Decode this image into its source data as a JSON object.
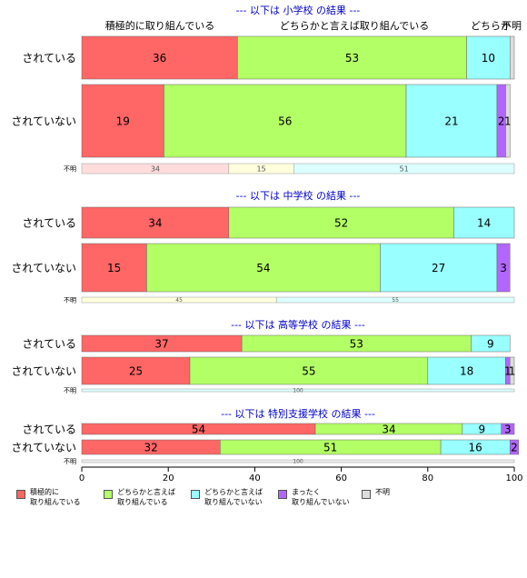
{
  "chart_data": {
    "type": "bar",
    "orientation": "horizontal",
    "stacked": "percent",
    "xlim": [
      0,
      100
    ],
    "x_ticks": [
      "0",
      "20",
      "40",
      "60",
      "80",
      "100"
    ],
    "legend_position": "bottom",
    "top_category_labels": [
      "積極的に取り組んでいる",
      "どちらかと言えば取り組んでいる",
      "どちらか",
      "不明"
    ],
    "series": [
      {
        "name": "積極的に\n取り組んでいる",
        "color": "#FF6666"
      },
      {
        "name": "どちらかと言えば\n取り組んでいる",
        "color": "#B3FF66"
      },
      {
        "name": "どちらかと言えば\n取り組んでいない",
        "color": "#99FFFF"
      },
      {
        "name": "まったく\n取り組んでいない",
        "color": "#B266FF"
      },
      {
        "name": "不明",
        "color": "#DDDDDD"
      }
    ],
    "panels": [
      {
        "title": "--- 以下は 小学校 の結果 ---",
        "rows": [
          {
            "label": "されている",
            "values": [
              36,
              53,
              10,
              0,
              1
            ],
            "labels": [
              "36",
              "53",
              "10",
              "",
              ""
            ]
          },
          {
            "label": "されていない",
            "values": [
              19,
              56,
              21,
              2,
              1
            ],
            "labels": [
              "19",
              "56",
              "21",
              "2",
              "1"
            ]
          }
        ],
        "unknown": {
          "label": "不明",
          "values": [
            34,
            15,
            51,
            0,
            0
          ],
          "colors": [
            "#FFDDDD",
            "#FFFFDD",
            "#DDFFFF",
            "#EEEEFF",
            "#EEEEEE"
          ],
          "labels": [
            "34",
            "15",
            "51",
            "",
            ""
          ]
        }
      },
      {
        "title": "--- 以下は 中学校 の結果 ---",
        "rows": [
          {
            "label": "されている",
            "values": [
              34,
              52,
              14,
              0,
              0
            ],
            "labels": [
              "34",
              "52",
              "14",
              "",
              ""
            ]
          },
          {
            "label": "されていない",
            "values": [
              15,
              54,
              27,
              3,
              0
            ],
            "labels": [
              "15",
              "54",
              "27",
              "3",
              ""
            ]
          }
        ],
        "unknown": {
          "label": "不明",
          "values": [
            0,
            45,
            55,
            0,
            0
          ],
          "colors": [
            "#FFDDDD",
            "#FFFFDD",
            "#DDFFFF",
            "#EEEEFF",
            "#EEEEEE"
          ],
          "labels": [
            "",
            "45",
            "55",
            "",
            ""
          ]
        }
      },
      {
        "title": "--- 以下は 高等学校 の結果 ---",
        "rows": [
          {
            "label": "されている",
            "values": [
              37,
              53,
              9,
              0,
              0
            ],
            "labels": [
              "37",
              "53",
              "9",
              "",
              ""
            ]
          },
          {
            "label": "されていない",
            "values": [
              25,
              55,
              18,
              1,
              1
            ],
            "labels": [
              "25",
              "55",
              "18",
              "1",
              "1"
            ]
          }
        ],
        "unknown": {
          "label": "不明",
          "values": [
            0,
            0,
            100,
            0,
            0
          ],
          "colors": [
            "#FFDDDD",
            "#FFFFDD",
            "#DDFFFF",
            "#EEEEFF",
            "#EEEEEE"
          ],
          "labels": [
            "",
            "",
            "100",
            "",
            ""
          ]
        }
      },
      {
        "title": "--- 以下は 特別支援学校 の結果 ---",
        "rows": [
          {
            "label": "されている",
            "values": [
              54,
              34,
              9,
              3,
              0
            ],
            "labels": [
              "54",
              "34",
              "9",
              "3",
              ""
            ]
          },
          {
            "label": "されていない",
            "values": [
              32,
              51,
              16,
              2,
              0
            ],
            "labels": [
              "32",
              "51",
              "16",
              "2",
              ""
            ]
          }
        ],
        "unknown": {
          "label": "不明",
          "values": [
            0,
            0,
            0,
            0,
            100
          ],
          "colors": [
            "#FFDDDD",
            "#FFFFDD",
            "#DDFFFF",
            "#EEEEFF",
            "#EEEEEE"
          ],
          "labels": [
            "",
            "",
            "",
            "",
            "100"
          ]
        }
      }
    ]
  }
}
